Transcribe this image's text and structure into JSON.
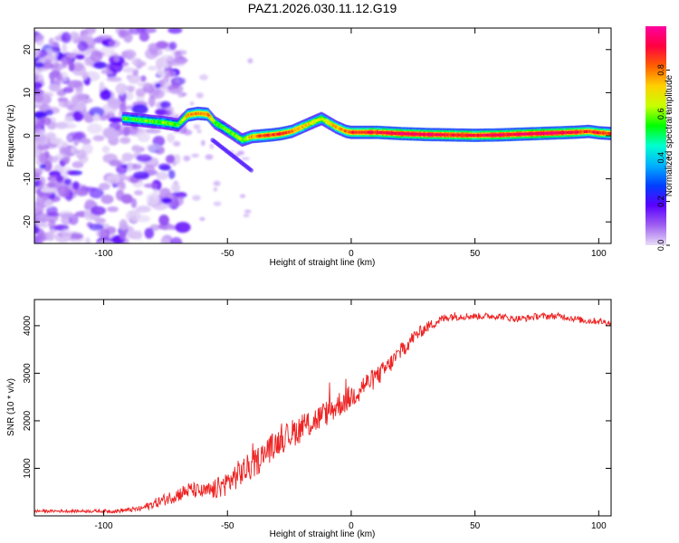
{
  "title": "PAZ1.2026.030.11.12.G19",
  "chart_data": [
    {
      "type": "heatmap",
      "title": "PAZ1.2026.030.11.12.G19",
      "xlabel": "Height of straight line (km)",
      "ylabel": "Frequency (Hz)",
      "xlim": [
        -128,
        105
      ],
      "ylim": [
        -25,
        25
      ],
      "xticks": [
        -100,
        -50,
        0,
        50,
        100
      ],
      "yticks": [
        -20,
        -10,
        0,
        10,
        20
      ],
      "colorbar": {
        "label": "Normalized spectral amplitude",
        "range": [
          0,
          1
        ],
        "ticks": [
          "0.0",
          "0.2",
          "0.4",
          "0.6",
          "0.8"
        ],
        "colors": [
          "#e8ddf7",
          "#a060f0",
          "#5a00ff",
          "#0040ff",
          "#00b0ff",
          "#00ffd0",
          "#00ff00",
          "#c8ff00",
          "#ffd000",
          "#ff6000",
          "#ff0040",
          "#ff00a0"
        ]
      },
      "ridge": {
        "height_km": [
          -92,
          -85,
          -75,
          -70,
          -66,
          -62,
          -58,
          -55,
          -52,
          -48,
          -44,
          -40,
          -36,
          -32,
          -28,
          -24,
          -20,
          -16,
          -12,
          -9,
          -6,
          -2,
          0,
          10,
          20,
          30,
          40,
          50,
          60,
          70,
          80,
          90,
          96,
          100,
          105
        ],
        "frequency_hz": [
          4,
          3.6,
          3,
          2.5,
          4.8,
          5.2,
          5,
          3,
          2,
          0.5,
          -1,
          -0.2,
          0,
          0.2,
          0.5,
          1,
          2,
          3,
          4,
          3,
          2,
          1,
          0.8,
          0.8,
          0.5,
          0.3,
          0.2,
          0.1,
          0.2,
          0.4,
          0.6,
          0.8,
          1,
          0.7,
          0.5
        ],
        "amplitude": [
          0.55,
          0.55,
          0.6,
          0.55,
          0.75,
          0.8,
          0.8,
          0.6,
          0.55,
          0.6,
          0.6,
          0.75,
          0.85,
          0.85,
          0.85,
          0.8,
          0.75,
          0.7,
          0.65,
          0.7,
          0.75,
          0.8,
          0.85,
          0.9,
          0.92,
          0.92,
          0.9,
          0.9,
          0.92,
          0.92,
          0.95,
          0.9,
          0.85,
          0.88,
          0.85
        ]
      }
    },
    {
      "type": "line",
      "xlabel": "Height of straight line (km)",
      "ylabel": "SNR (10 * v/v)",
      "xlim": [
        -128,
        105
      ],
      "ylim": [
        0,
        4550
      ],
      "xticks": [
        -100,
        -50,
        0,
        50,
        100
      ],
      "yticks": [
        1000,
        2000,
        3000,
        4000
      ],
      "series": [
        {
          "name": "SNR",
          "color": "#ee2222",
          "x": [
            -128,
            -110,
            -95,
            -85,
            -80,
            -75,
            -70,
            -65,
            -60,
            -55,
            -50,
            -45,
            -40,
            -35,
            -30,
            -25,
            -20,
            -15,
            -10,
            -5,
            0,
            5,
            10,
            15,
            20,
            25,
            30,
            35,
            40,
            45,
            50,
            55,
            60,
            65,
            70,
            75,
            80,
            85,
            90,
            95,
            100,
            105
          ],
          "y": [
            100,
            100,
            100,
            150,
            250,
            350,
            450,
            550,
            500,
            550,
            700,
            900,
            1050,
            1300,
            1550,
            1700,
            1850,
            2000,
            2150,
            2350,
            2500,
            2750,
            2900,
            3150,
            3450,
            3750,
            3950,
            4100,
            4200,
            4200,
            4200,
            4200,
            4200,
            4150,
            4150,
            4200,
            4200,
            4200,
            4150,
            4100,
            4100,
            4050
          ],
          "noise": [
            30,
            30,
            40,
            60,
            100,
            130,
            160,
            170,
            160,
            220,
            260,
            300,
            300,
            300,
            280,
            300,
            300,
            300,
            280,
            280,
            260,
            240,
            220,
            200,
            180,
            150,
            120,
            100,
            100,
            80,
            70,
            70,
            70,
            70,
            70,
            70,
            70,
            70,
            70,
            70,
            70,
            70
          ]
        }
      ]
    }
  ]
}
